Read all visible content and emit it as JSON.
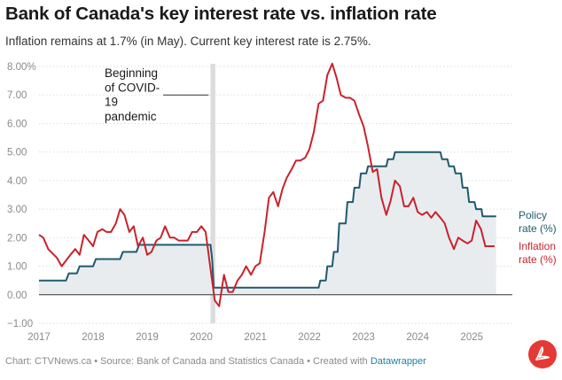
{
  "header": {
    "title": "Bank of Canada's key interest rate vs. inflation rate",
    "subtitle": "Inflation remains at 1.7% (in May). Current key interest rate is 2.75%."
  },
  "footer": {
    "prefix": "Chart: CTVNews.ca • Source: Bank of Canada and Statistics Canada • Created with ",
    "link": "Datawrapper"
  },
  "colors": {
    "policy": "#1f5a6e",
    "inflation": "#c8232c",
    "area": "#e8ecef",
    "covid_band": "#dcdcdc",
    "grid": "#dddddd"
  },
  "chart_data": {
    "type": "line",
    "x_unit": "year",
    "xlim": [
      2017.0,
      2025.75
    ],
    "ylim": [
      -1,
      8
    ],
    "xticks": [
      {
        "value": 2017,
        "label": "2017"
      },
      {
        "value": 2018,
        "label": "2018"
      },
      {
        "value": 2019,
        "label": "2019"
      },
      {
        "value": 2020,
        "label": "2020"
      },
      {
        "value": 2021,
        "label": "2021"
      },
      {
        "value": 2022,
        "label": "2022"
      },
      {
        "value": 2023,
        "label": "2023"
      },
      {
        "value": 2024,
        "label": "2024"
      },
      {
        "value": 2025,
        "label": "2025"
      }
    ],
    "yticks": [
      {
        "value": 8,
        "label": "8.00%"
      },
      {
        "value": 7,
        "label": "7.00"
      },
      {
        "value": 6,
        "label": "6.00"
      },
      {
        "value": 5,
        "label": "5.00"
      },
      {
        "value": 4,
        "label": "4.00"
      },
      {
        "value": 3,
        "label": "3.00"
      },
      {
        "value": 2,
        "label": "2.00"
      },
      {
        "value": 1,
        "label": "1.00"
      },
      {
        "value": 0,
        "label": "0.00"
      },
      {
        "value": -1,
        "label": "−1.00"
      }
    ],
    "covid_band": [
      2020.17,
      2020.26
    ],
    "annotation": {
      "lines": [
        "Beginning",
        "of COVID-",
        "19",
        "pandemic"
      ],
      "x": 2020.2,
      "y": 7.0
    },
    "series": [
      {
        "name": "policy",
        "label_lines": [
          "Policy",
          "rate (%)"
        ],
        "points": [
          [
            2017.0,
            0.5
          ],
          [
            2017.5,
            0.5
          ],
          [
            2017.55,
            0.75
          ],
          [
            2017.7,
            0.75
          ],
          [
            2017.75,
            1.0
          ],
          [
            2018.0,
            1.0
          ],
          [
            2018.05,
            1.25
          ],
          [
            2018.5,
            1.25
          ],
          [
            2018.55,
            1.5
          ],
          [
            2018.8,
            1.5
          ],
          [
            2018.85,
            1.75
          ],
          [
            2020.17,
            1.75
          ],
          [
            2020.2,
            1.25
          ],
          [
            2020.23,
            0.25
          ],
          [
            2022.17,
            0.25
          ],
          [
            2022.2,
            0.5
          ],
          [
            2022.3,
            0.5
          ],
          [
            2022.33,
            1.0
          ],
          [
            2022.42,
            1.0
          ],
          [
            2022.45,
            1.5
          ],
          [
            2022.52,
            1.5
          ],
          [
            2022.55,
            2.5
          ],
          [
            2022.67,
            2.5
          ],
          [
            2022.7,
            3.25
          ],
          [
            2022.8,
            3.25
          ],
          [
            2022.83,
            3.75
          ],
          [
            2022.92,
            3.75
          ],
          [
            2022.95,
            4.25
          ],
          [
            2023.05,
            4.25
          ],
          [
            2023.08,
            4.5
          ],
          [
            2023.42,
            4.5
          ],
          [
            2023.45,
            4.75
          ],
          [
            2023.55,
            4.75
          ],
          [
            2023.58,
            5.0
          ],
          [
            2024.42,
            5.0
          ],
          [
            2024.45,
            4.75
          ],
          [
            2024.55,
            4.75
          ],
          [
            2024.58,
            4.5
          ],
          [
            2024.67,
            4.5
          ],
          [
            2024.7,
            4.25
          ],
          [
            2024.8,
            4.25
          ],
          [
            2024.83,
            3.75
          ],
          [
            2024.92,
            3.75
          ],
          [
            2024.95,
            3.25
          ],
          [
            2025.05,
            3.25
          ],
          [
            2025.08,
            3.0
          ],
          [
            2025.18,
            3.0
          ],
          [
            2025.2,
            2.75
          ],
          [
            2025.45,
            2.75
          ]
        ]
      },
      {
        "name": "inflation",
        "label_lines": [
          "Inflation",
          "rate (%)"
        ],
        "points": [
          [
            2017.0,
            2.1
          ],
          [
            2017.08,
            2.0
          ],
          [
            2017.17,
            1.6
          ],
          [
            2017.33,
            1.3
          ],
          [
            2017.42,
            1.0
          ],
          [
            2017.5,
            1.2
          ],
          [
            2017.58,
            1.4
          ],
          [
            2017.67,
            1.6
          ],
          [
            2017.75,
            1.4
          ],
          [
            2017.83,
            2.1
          ],
          [
            2017.92,
            1.9
          ],
          [
            2018.0,
            1.7
          ],
          [
            2018.08,
            2.2
          ],
          [
            2018.17,
            2.3
          ],
          [
            2018.25,
            2.2
          ],
          [
            2018.33,
            2.2
          ],
          [
            2018.42,
            2.5
          ],
          [
            2018.5,
            3.0
          ],
          [
            2018.58,
            2.8
          ],
          [
            2018.67,
            2.2
          ],
          [
            2018.75,
            2.4
          ],
          [
            2018.83,
            1.7
          ],
          [
            2018.92,
            2.0
          ],
          [
            2019.0,
            1.4
          ],
          [
            2019.08,
            1.5
          ],
          [
            2019.17,
            1.9
          ],
          [
            2019.25,
            2.0
          ],
          [
            2019.33,
            2.4
          ],
          [
            2019.42,
            2.0
          ],
          [
            2019.5,
            2.0
          ],
          [
            2019.58,
            1.9
          ],
          [
            2019.67,
            1.9
          ],
          [
            2019.75,
            1.9
          ],
          [
            2019.83,
            2.2
          ],
          [
            2019.92,
            2.2
          ],
          [
            2020.0,
            2.4
          ],
          [
            2020.08,
            2.2
          ],
          [
            2020.17,
            0.9
          ],
          [
            2020.25,
            -0.2
          ],
          [
            2020.33,
            -0.4
          ],
          [
            2020.42,
            0.7
          ],
          [
            2020.5,
            0.1
          ],
          [
            2020.58,
            0.1
          ],
          [
            2020.67,
            0.5
          ],
          [
            2020.75,
            0.7
          ],
          [
            2020.83,
            1.0
          ],
          [
            2020.92,
            0.7
          ],
          [
            2021.0,
            1.0
          ],
          [
            2021.08,
            1.1
          ],
          [
            2021.17,
            2.2
          ],
          [
            2021.25,
            3.4
          ],
          [
            2021.33,
            3.6
          ],
          [
            2021.42,
            3.1
          ],
          [
            2021.5,
            3.7
          ],
          [
            2021.58,
            4.1
          ],
          [
            2021.67,
            4.4
          ],
          [
            2021.75,
            4.7
          ],
          [
            2021.83,
            4.7
          ],
          [
            2021.92,
            4.8
          ],
          [
            2022.0,
            5.1
          ],
          [
            2022.08,
            5.7
          ],
          [
            2022.17,
            6.7
          ],
          [
            2022.25,
            6.8
          ],
          [
            2022.33,
            7.7
          ],
          [
            2022.42,
            8.1
          ],
          [
            2022.5,
            7.6
          ],
          [
            2022.58,
            7.0
          ],
          [
            2022.67,
            6.9
          ],
          [
            2022.75,
            6.9
          ],
          [
            2022.83,
            6.8
          ],
          [
            2022.92,
            6.3
          ],
          [
            2023.0,
            5.9
          ],
          [
            2023.08,
            5.2
          ],
          [
            2023.17,
            4.3
          ],
          [
            2023.25,
            4.4
          ],
          [
            2023.33,
            3.4
          ],
          [
            2023.42,
            2.8
          ],
          [
            2023.5,
            3.3
          ],
          [
            2023.58,
            4.0
          ],
          [
            2023.67,
            3.8
          ],
          [
            2023.75,
            3.1
          ],
          [
            2023.83,
            3.1
          ],
          [
            2023.92,
            3.4
          ],
          [
            2024.0,
            2.9
          ],
          [
            2024.08,
            2.8
          ],
          [
            2024.17,
            2.9
          ],
          [
            2024.25,
            2.7
          ],
          [
            2024.33,
            2.9
          ],
          [
            2024.42,
            2.7
          ],
          [
            2024.5,
            2.5
          ],
          [
            2024.58,
            2.0
          ],
          [
            2024.67,
            1.6
          ],
          [
            2024.75,
            2.0
          ],
          [
            2024.83,
            1.9
          ],
          [
            2024.92,
            1.8
          ],
          [
            2025.0,
            1.9
          ],
          [
            2025.08,
            2.6
          ],
          [
            2025.17,
            2.3
          ],
          [
            2025.25,
            1.7
          ],
          [
            2025.33,
            1.7
          ],
          [
            2025.42,
            1.7
          ]
        ]
      }
    ]
  }
}
